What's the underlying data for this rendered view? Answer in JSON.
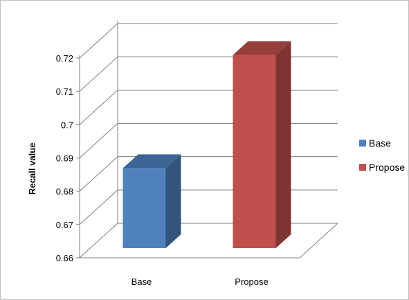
{
  "chart_data": {
    "type": "bar",
    "style": "3d-clustered-column",
    "title": "",
    "xlabel": "",
    "ylabel": "Recall value",
    "categories": [
      "Base",
      "Propose"
    ],
    "series": [
      {
        "name": "Base",
        "color": "#4f81bd",
        "values": [
          0.684,
          null
        ]
      },
      {
        "name": "Propose",
        "color": "#c0504d",
        "values": [
          null,
          0.718
        ]
      }
    ],
    "ylim": [
      0.66,
      0.72
    ],
    "yticks": [
      "0.66",
      "0.67",
      "0.68",
      "0.69",
      "0.7",
      "0.71",
      "0.72"
    ],
    "grid": true,
    "legend": "right"
  }
}
